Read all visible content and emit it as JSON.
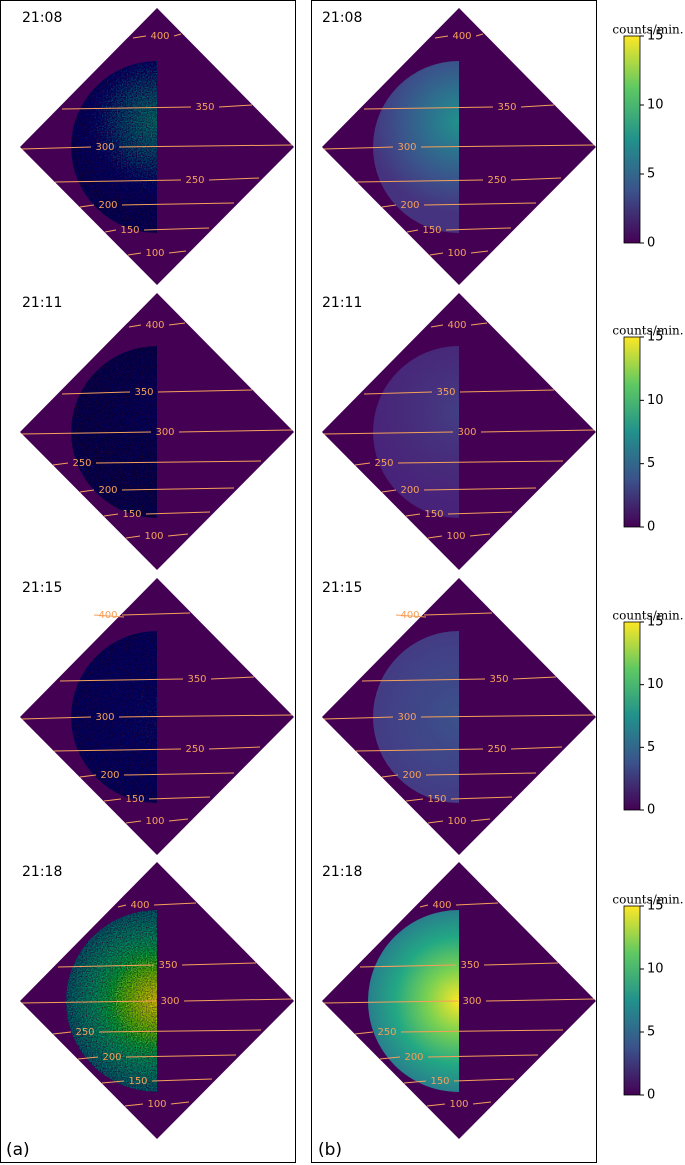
{
  "rows": [
    {
      "left": {
        "time": "21:08",
        "contours": [
          "400",
          "350",
          "300",
          "250",
          "200",
          "150",
          "100"
        ]
      },
      "right": {
        "time": "21:08",
        "contours": [
          "400",
          "350",
          "300",
          "250",
          "200",
          "150",
          "100"
        ]
      },
      "colorbar": {
        "label": "counts/min.",
        "lim": [
          0,
          15
        ],
        "ticks": [
          0,
          5,
          10,
          15
        ]
      }
    },
    {
      "left": {
        "time": "21:11",
        "contours": [
          "400",
          "350",
          "300",
          "250",
          "200",
          "150",
          "100"
        ]
      },
      "right": {
        "time": "21:11",
        "contours": [
          "400",
          "350",
          "300",
          "250",
          "200",
          "150",
          "100"
        ]
      },
      "colorbar": {
        "label": "counts/min.",
        "lim": [
          0,
          15
        ],
        "ticks": [
          0,
          5,
          10,
          15
        ]
      }
    },
    {
      "left": {
        "time": "21:15",
        "contours": [
          "400",
          "350",
          "300",
          "250",
          "200",
          "150",
          "100"
        ]
      },
      "right": {
        "time": "21:15",
        "contours": [
          "400",
          "350",
          "300",
          "250",
          "200",
          "150",
          "100"
        ]
      },
      "colorbar": {
        "label": "counts/min.",
        "lim": [
          0,
          15
        ],
        "ticks": [
          0,
          5,
          10,
          15
        ]
      }
    },
    {
      "left": {
        "time": "21:18",
        "contours": [
          "400",
          "350",
          "300",
          "250",
          "200",
          "150",
          "100"
        ]
      },
      "right": {
        "time": "21:18",
        "contours": [
          "400",
          "350",
          "300",
          "250",
          "200",
          "150",
          "100"
        ]
      },
      "colorbar": {
        "label": "counts/min.",
        "lim": [
          0,
          15
        ],
        "ticks": [
          0,
          5,
          10,
          15
        ]
      }
    }
  ],
  "panel_labels": {
    "left": "(a)",
    "right": "(b)"
  }
}
